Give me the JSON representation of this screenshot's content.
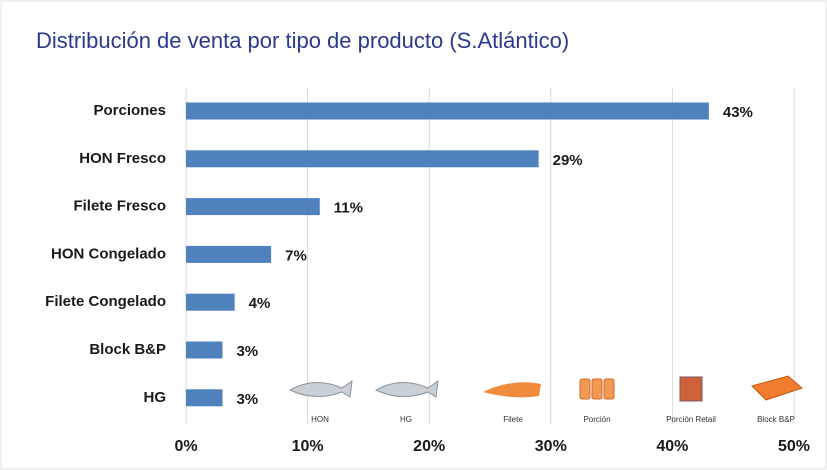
{
  "chart_data": {
    "type": "hbar",
    "title": "Distribución de venta por tipo de producto (S.Atlántico)",
    "categories": [
      "Porciones",
      "HON Fresco",
      "Filete Fresco",
      "HON Congelado",
      "Filete Congelado",
      "Block B&P",
      "HG"
    ],
    "values": [
      43,
      29,
      11,
      7,
      4,
      3,
      3
    ],
    "value_labels": [
      "43%",
      "29%",
      "11%",
      "7%",
      "4%",
      "3%",
      "3%"
    ],
    "color": "#4f81bd",
    "xlim": [
      0,
      50
    ],
    "xticks": [
      {
        "value": 0,
        "label": "0%"
      },
      {
        "value": 10,
        "label": "10%"
      },
      {
        "value": 20,
        "label": "20%"
      },
      {
        "value": 30,
        "label": "30%"
      },
      {
        "value": 40,
        "label": "40%"
      },
      {
        "value": 50,
        "label": "50%"
      }
    ],
    "grid": true,
    "product_icons": [
      "HON",
      "HG",
      "Filete",
      "Porción",
      "Porción Retail",
      "Block B&P"
    ]
  }
}
